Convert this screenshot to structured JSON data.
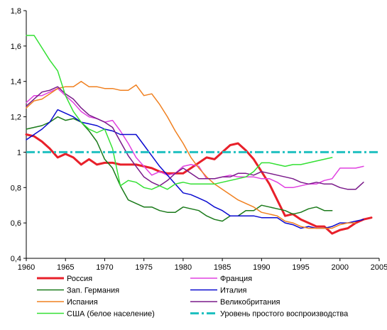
{
  "chart_data": {
    "type": "line",
    "title": "",
    "xlabel": "",
    "ylabel": "",
    "xlim": [
      1960,
      2005
    ],
    "ylim": [
      0.4,
      1.8
    ],
    "x_ticks": [
      1960,
      1965,
      1970,
      1975,
      1980,
      1985,
      1990,
      1995,
      2000,
      2005
    ],
    "x_tick_labels": [
      "1960",
      "1965",
      "1970",
      "1975",
      "1980",
      "1985",
      "1990",
      "1995",
      "2000",
      "2005"
    ],
    "y_ticks": [
      0.4,
      0.6,
      0.8,
      1.0,
      1.2,
      1.4,
      1.6,
      1.8
    ],
    "y_tick_labels": [
      "0,4",
      "0,6",
      "0,8",
      "1",
      "1,2",
      "1,4",
      "1,6",
      "1,8"
    ],
    "grid": false,
    "legend_position": "bottom",
    "series": [
      {
        "name": "Россия",
        "color": "#e8202a",
        "width": 3,
        "x": [
          1960,
          1961,
          1962,
          1963,
          1964,
          1965,
          1966,
          1967,
          1968,
          1969,
          1970,
          1971,
          1972,
          1973,
          1974,
          1975,
          1976,
          1977,
          1978,
          1979,
          1980,
          1981,
          1982,
          1983,
          1984,
          1985,
          1986,
          1987,
          1988,
          1989,
          1990,
          1991,
          1992,
          1993,
          1994,
          1995,
          1996,
          1997,
          1998,
          1999,
          2000,
          2001,
          2002,
          2003,
          2004
        ],
        "y": [
          1.1,
          1.09,
          1.06,
          1.02,
          0.97,
          0.99,
          0.97,
          0.93,
          0.96,
          0.93,
          0.94,
          0.94,
          0.93,
          0.93,
          0.93,
          0.92,
          0.91,
          0.89,
          0.88,
          0.88,
          0.88,
          0.91,
          0.94,
          0.97,
          0.96,
          1.0,
          1.04,
          1.05,
          1.01,
          0.96,
          0.89,
          0.82,
          0.73,
          0.64,
          0.65,
          0.62,
          0.6,
          0.58,
          0.58,
          0.54,
          0.56,
          0.57,
          0.6,
          0.62,
          0.63
        ]
      },
      {
        "name": "Франция",
        "color": "#e040e0",
        "width": 1.5,
        "x": [
          1960,
          1961,
          1962,
          1963,
          1964,
          1965,
          1966,
          1967,
          1968,
          1969,
          1970,
          1971,
          1972,
          1973,
          1974,
          1975,
          1976,
          1977,
          1978,
          1979,
          1980,
          1981,
          1982,
          1983,
          1984,
          1985,
          1986,
          1987,
          1988,
          1989,
          1990,
          1991,
          1992,
          1993,
          1994,
          1995,
          1996,
          1997,
          1998,
          1999,
          2000,
          2001,
          2002,
          2003
        ],
        "y": [
          1.28,
          1.32,
          1.32,
          1.34,
          1.36,
          1.32,
          1.28,
          1.23,
          1.2,
          1.19,
          1.17,
          1.18,
          1.12,
          1.05,
          0.97,
          0.92,
          0.87,
          0.89,
          0.87,
          0.88,
          0.92,
          0.93,
          0.92,
          0.85,
          0.85,
          0.86,
          0.87,
          0.86,
          0.86,
          0.86,
          0.85,
          0.85,
          0.83,
          0.8,
          0.8,
          0.81,
          0.82,
          0.82,
          0.84,
          0.85,
          0.91,
          0.91,
          0.91,
          0.92
        ]
      },
      {
        "name": "Зап. Германия",
        "color": "#1a7a1a",
        "width": 1.5,
        "x": [
          1960,
          1961,
          1962,
          1963,
          1964,
          1965,
          1966,
          1967,
          1968,
          1969,
          1970,
          1971,
          1972,
          1973,
          1974,
          1975,
          1976,
          1977,
          1978,
          1979,
          1980,
          1981,
          1982,
          1983,
          1984,
          1985,
          1986,
          1987,
          1988,
          1989,
          1990,
          1991,
          1992,
          1993,
          1994,
          1995,
          1996,
          1997,
          1998,
          1999
        ],
        "y": [
          1.13,
          1.14,
          1.15,
          1.17,
          1.2,
          1.18,
          1.19,
          1.17,
          1.12,
          1.06,
          0.96,
          0.91,
          0.81,
          0.73,
          0.71,
          0.69,
          0.69,
          0.67,
          0.66,
          0.66,
          0.69,
          0.68,
          0.67,
          0.64,
          0.62,
          0.61,
          0.64,
          0.64,
          0.67,
          0.67,
          0.7,
          0.69,
          0.68,
          0.67,
          0.65,
          0.66,
          0.68,
          0.69,
          0.67,
          0.67
        ]
      },
      {
        "name": "Италия",
        "color": "#0a0ad0",
        "width": 1.5,
        "x": [
          1960,
          1961,
          1962,
          1963,
          1964,
          1965,
          1966,
          1967,
          1968,
          1969,
          1970,
          1971,
          1972,
          1973,
          1974,
          1975,
          1976,
          1977,
          1978,
          1979,
          1980,
          1981,
          1982,
          1983,
          1984,
          1985,
          1986,
          1987,
          1988,
          1989,
          1990,
          1991,
          1992,
          1993,
          1994,
          1995,
          1996,
          1997,
          1998,
          1999,
          2000,
          2001,
          2002,
          2003
        ],
        "y": [
          1.07,
          1.1,
          1.13,
          1.17,
          1.24,
          1.22,
          1.2,
          1.17,
          1.16,
          1.15,
          1.13,
          1.12,
          1.1,
          1.1,
          1.1,
          1.04,
          0.98,
          0.92,
          0.87,
          0.82,
          0.77,
          0.76,
          0.74,
          0.72,
          0.69,
          0.67,
          0.64,
          0.64,
          0.64,
          0.64,
          0.63,
          0.63,
          0.63,
          0.6,
          0.59,
          0.57,
          0.58,
          0.57,
          0.57,
          0.58,
          0.6,
          0.6,
          0.61,
          0.62
        ]
      },
      {
        "name": "Испания",
        "color": "#f08020",
        "width": 1.5,
        "x": [
          1960,
          1961,
          1962,
          1963,
          1964,
          1965,
          1966,
          1967,
          1968,
          1969,
          1970,
          1971,
          1972,
          1973,
          1974,
          1975,
          1976,
          1977,
          1978,
          1979,
          1980,
          1981,
          1982,
          1983,
          1984,
          1985,
          1986,
          1987,
          1988,
          1989,
          1990,
          1991,
          1992,
          1993,
          1994,
          1995,
          1996,
          1997,
          1998,
          1999,
          2000,
          2001,
          2002
        ],
        "y": [
          1.25,
          1.29,
          1.3,
          1.33,
          1.36,
          1.37,
          1.37,
          1.4,
          1.37,
          1.37,
          1.36,
          1.36,
          1.35,
          1.35,
          1.38,
          1.32,
          1.33,
          1.27,
          1.2,
          1.12,
          1.05,
          0.97,
          0.91,
          0.86,
          0.82,
          0.79,
          0.76,
          0.73,
          0.71,
          0.69,
          0.66,
          0.65,
          0.64,
          0.61,
          0.6,
          0.58,
          0.57,
          0.57,
          0.57,
          0.57,
          0.59,
          0.6,
          0.6
        ]
      },
      {
        "name": "Великобритания",
        "color": "#7a1a8a",
        "width": 1.5,
        "x": [
          1960,
          1961,
          1962,
          1963,
          1964,
          1965,
          1966,
          1967,
          1968,
          1969,
          1970,
          1971,
          1972,
          1973,
          1974,
          1975,
          1976,
          1977,
          1978,
          1979,
          1980,
          1981,
          1982,
          1983,
          1984,
          1985,
          1986,
          1987,
          1988,
          1989,
          1990,
          1991,
          1992,
          1993,
          1994,
          1995,
          1996,
          1997,
          1998,
          1999,
          2000,
          2001,
          2002,
          2003
        ],
        "y": [
          1.26,
          1.3,
          1.34,
          1.35,
          1.37,
          1.33,
          1.3,
          1.25,
          1.21,
          1.19,
          1.17,
          1.14,
          1.06,
          0.98,
          0.92,
          0.86,
          0.83,
          0.81,
          0.84,
          0.88,
          0.91,
          0.88,
          0.85,
          0.85,
          0.85,
          0.86,
          0.86,
          0.88,
          0.88,
          0.87,
          0.89,
          0.88,
          0.87,
          0.86,
          0.85,
          0.83,
          0.82,
          0.83,
          0.82,
          0.82,
          0.8,
          0.79,
          0.79,
          0.83
        ]
      },
      {
        "name": "США (белое население)",
        "color": "#33e033",
        "width": 1.5,
        "x": [
          1960,
          1961,
          1962,
          1963,
          1964,
          1965,
          1966,
          1967,
          1968,
          1969,
          1970,
          1971,
          1972,
          1973,
          1974,
          1975,
          1976,
          1977,
          1978,
          1979,
          1980,
          1981,
          1982,
          1983,
          1984,
          1985,
          1986,
          1987,
          1988,
          1989,
          1990,
          1991,
          1992,
          1993,
          1994,
          1995,
          1996,
          1997,
          1998,
          1999
        ],
        "y": [
          1.66,
          1.66,
          1.59,
          1.52,
          1.46,
          1.32,
          1.23,
          1.17,
          1.13,
          1.11,
          1.13,
          1.02,
          0.81,
          0.84,
          0.83,
          0.8,
          0.79,
          0.81,
          0.79,
          0.82,
          0.83,
          0.82,
          0.82,
          0.82,
          0.82,
          0.83,
          0.84,
          0.85,
          0.86,
          0.89,
          0.94,
          0.94,
          0.93,
          0.92,
          0.93,
          0.93,
          0.94,
          0.95,
          0.96,
          0.97
        ]
      },
      {
        "name": "Уровень простого воспроизводства",
        "color": "#20c0c0",
        "width": 3,
        "dash": "12,4,3,4",
        "x": [
          1960,
          2005
        ],
        "y": [
          1.0,
          1.0
        ]
      }
    ],
    "legend_order": [
      0,
      1,
      2,
      3,
      4,
      5,
      6,
      7
    ]
  }
}
